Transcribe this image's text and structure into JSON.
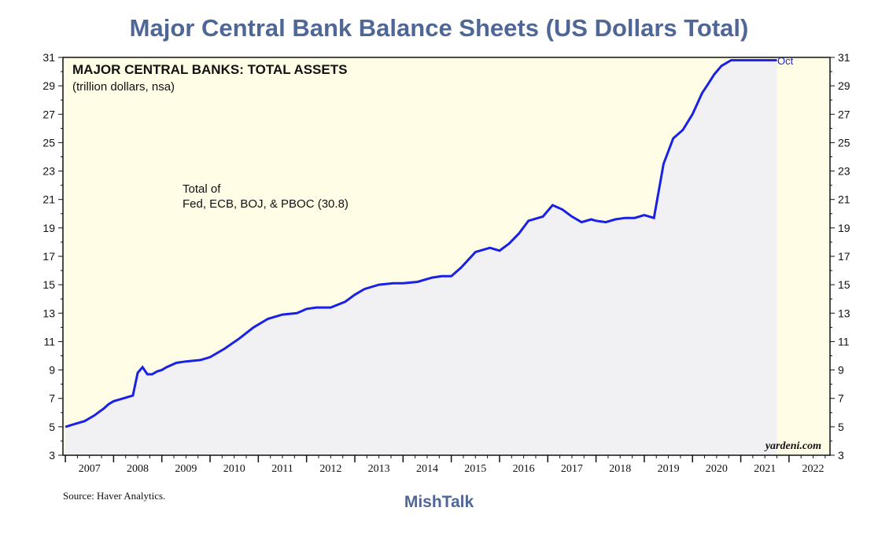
{
  "page_title": "Major Central Bank Balance Sheets (US Dollars Total)",
  "footer": {
    "source": "Source: Haver Analytics.",
    "brand": "MishTalk"
  },
  "colors": {
    "title": "#4f6796",
    "line": "#1a21e6",
    "plot_bg": "#fffde6",
    "fill": "#f1f1f4",
    "forecast_bg": "#fffde6"
  },
  "chart_data": {
    "type": "area",
    "title": "MAJOR CENTRAL BANKS: TOTAL ASSETS",
    "subtitle": "(trillion dollars, nsa)",
    "annotation": "Total of\nFed, ECB, BOJ, & PBOC (30.8)",
    "end_label": "Oct",
    "watermark": "yardeni.com",
    "grid": false,
    "ylim": [
      3,
      31
    ],
    "yticks": [
      3,
      5,
      7,
      9,
      11,
      13,
      15,
      17,
      19,
      21,
      23,
      25,
      27,
      29,
      31
    ],
    "xlim": [
      2006.95,
      2022.85
    ],
    "year_labels": [
      "2007",
      "2008",
      "2009",
      "2010",
      "2011",
      "2012",
      "2013",
      "2014",
      "2015",
      "2016",
      "2017",
      "2018",
      "2019",
      "2020",
      "2021",
      "2022"
    ],
    "series": [
      {
        "x": [
          2007.0,
          2007.2,
          2007.4,
          2007.6,
          2007.8,
          2007.9,
          2008.0,
          2008.2,
          2008.4,
          2008.5,
          2008.6,
          2008.7,
          2008.8,
          2008.9,
          2009.0,
          2009.1,
          2009.3,
          2009.5,
          2009.8,
          2010.0,
          2010.3,
          2010.6,
          2010.9,
          2011.2,
          2011.5,
          2011.8,
          2012.0,
          2012.2,
          2012.5,
          2012.8,
          2013.0,
          2013.2,
          2013.5,
          2013.8,
          2014.0,
          2014.3,
          2014.6,
          2014.8,
          2015.0,
          2015.2,
          2015.5,
          2015.8,
          2016.0,
          2016.2,
          2016.4,
          2016.6,
          2016.9,
          2017.1,
          2017.3,
          2017.5,
          2017.7,
          2017.9,
          2018.0,
          2018.2,
          2018.4,
          2018.6,
          2018.8,
          2019.0,
          2019.2,
          2019.4,
          2019.6,
          2019.8,
          2020.0,
          2020.2,
          2020.3,
          2020.45,
          2020.6,
          2020.8,
          2021.0,
          2021.2,
          2021.4,
          2021.6,
          2021.75
        ],
        "y": [
          5.0,
          5.2,
          5.4,
          5.8,
          6.3,
          6.6,
          6.8,
          7.0,
          7.2,
          8.8,
          9.2,
          8.7,
          8.7,
          8.9,
          9.0,
          9.2,
          9.5,
          9.6,
          9.7,
          9.9,
          10.5,
          11.2,
          12.0,
          12.6,
          12.9,
          13.0,
          13.3,
          13.4,
          13.4,
          13.8,
          14.3,
          14.7,
          15.0,
          15.1,
          15.1,
          15.2,
          15.5,
          15.6,
          15.6,
          16.2,
          17.3,
          17.6,
          17.4,
          17.9,
          18.6,
          19.5,
          19.8,
          20.6,
          20.3,
          19.8,
          19.4,
          19.6,
          19.5,
          19.4,
          19.6,
          19.7,
          19.7,
          19.9,
          19.7,
          23.5,
          25.3,
          25.9,
          27.0,
          28.5,
          29.0,
          29.8,
          30.4,
          30.8,
          30.8,
          30.8,
          30.8,
          30.8,
          30.8
        ]
      }
    ]
  }
}
